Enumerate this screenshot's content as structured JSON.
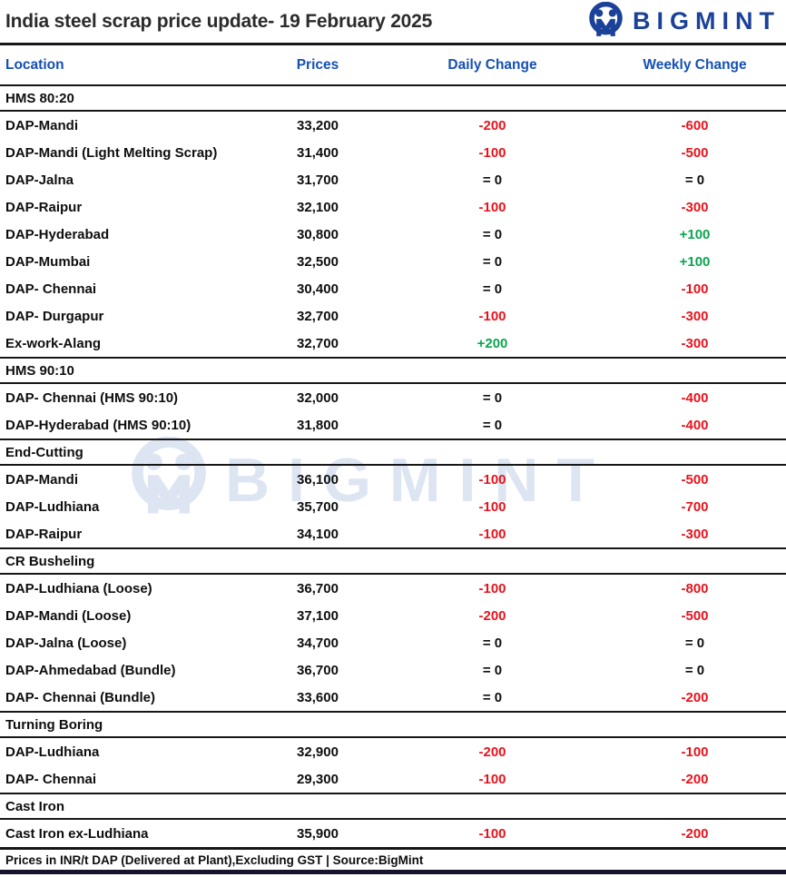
{
  "header": {
    "title": "India steel scrap price update- 19 February 2025",
    "brand": "BIGMINT"
  },
  "columns": {
    "location": "Location",
    "prices": "Prices",
    "daily": "Daily Change",
    "weekly": "Weekly Change"
  },
  "colors": {
    "header_blue": "#1450b4",
    "brand_blue": "#1b4199",
    "negative_red": "#e8121c",
    "positive_green": "#0aa64f",
    "watermark_blue": "#dde5f2"
  },
  "sections": [
    {
      "name": "HMS 80:20",
      "rows": [
        {
          "location": "DAP-Mandi",
          "price": "33,200",
          "daily": "-200",
          "weekly": "-600"
        },
        {
          "location": "DAP-Mandi (Light Melting Scrap)",
          "price": "31,400",
          "daily": "-100",
          "weekly": "-500"
        },
        {
          "location": "DAP-Jalna",
          "price": "31,700",
          "daily": "= 0",
          "weekly": "= 0"
        },
        {
          "location": "DAP-Raipur",
          "price": "32,100",
          "daily": "-100",
          "weekly": "-300"
        },
        {
          "location": "DAP-Hyderabad",
          "price": "30,800",
          "daily": "= 0",
          "weekly": "+100"
        },
        {
          "location": "DAP-Mumbai",
          "price": "32,500",
          "daily": "= 0",
          "weekly": "+100"
        },
        {
          "location": "DAP- Chennai",
          "price": "30,400",
          "daily": "= 0",
          "weekly": "-100"
        },
        {
          "location": "DAP- Durgapur",
          "price": "32,700",
          "daily": "-100",
          "weekly": "-300"
        },
        {
          "location": "Ex-work-Alang",
          "price": "32,700",
          "daily": "+200",
          "weekly": "-300"
        }
      ]
    },
    {
      "name": "HMS 90:10",
      "rows": [
        {
          "location": "DAP- Chennai (HMS 90:10)",
          "price": "32,000",
          "daily": "= 0",
          "weekly": "-400"
        },
        {
          "location": "DAP-Hyderabad (HMS 90:10)",
          "price": "31,800",
          "daily": "= 0",
          "weekly": "-400"
        }
      ]
    },
    {
      "name": "End-Cutting",
      "rows": [
        {
          "location": "DAP-Mandi",
          "price": "36,100",
          "daily": "-100",
          "weekly": "-500"
        },
        {
          "location": "DAP-Ludhiana",
          "price": "35,700",
          "daily": "-100",
          "weekly": "-700"
        },
        {
          "location": "DAP-Raipur",
          "price": "34,100",
          "daily": "-100",
          "weekly": "-300"
        }
      ]
    },
    {
      "name": "CR Busheling",
      "rows": [
        {
          "location": "DAP-Ludhiana (Loose)",
          "price": "36,700",
          "daily": "-100",
          "weekly": "-800"
        },
        {
          "location": "DAP-Mandi (Loose)",
          "price": "37,100",
          "daily": "-200",
          "weekly": "-500"
        },
        {
          "location": "DAP-Jalna (Loose)",
          "price": "34,700",
          "daily": "= 0",
          "weekly": "= 0"
        },
        {
          "location": "DAP-Ahmedabad (Bundle)",
          "price": "36,700",
          "daily": "= 0",
          "weekly": "= 0"
        },
        {
          "location": "DAP- Chennai (Bundle)",
          "price": "33,600",
          "daily": "= 0",
          "weekly": "-200"
        }
      ]
    },
    {
      "name": "Turning Boring",
      "rows": [
        {
          "location": "DAP-Ludhiana",
          "price": "32,900",
          "daily": "-200",
          "weekly": "-100"
        },
        {
          "location": "DAP- Chennai",
          "price": "29,300",
          "daily": "-100",
          "weekly": "-200"
        }
      ]
    },
    {
      "name": "Cast Iron",
      "rows": [
        {
          "location": "Cast Iron ex-Ludhiana",
          "price": "35,900",
          "daily": "-100",
          "weekly": "-200"
        }
      ]
    }
  ],
  "footer": {
    "note": "Prices in INR/t DAP (Delivered at Plant),Excluding GST | Source:BigMint"
  },
  "watermark": {
    "text": "BIGMINT"
  }
}
